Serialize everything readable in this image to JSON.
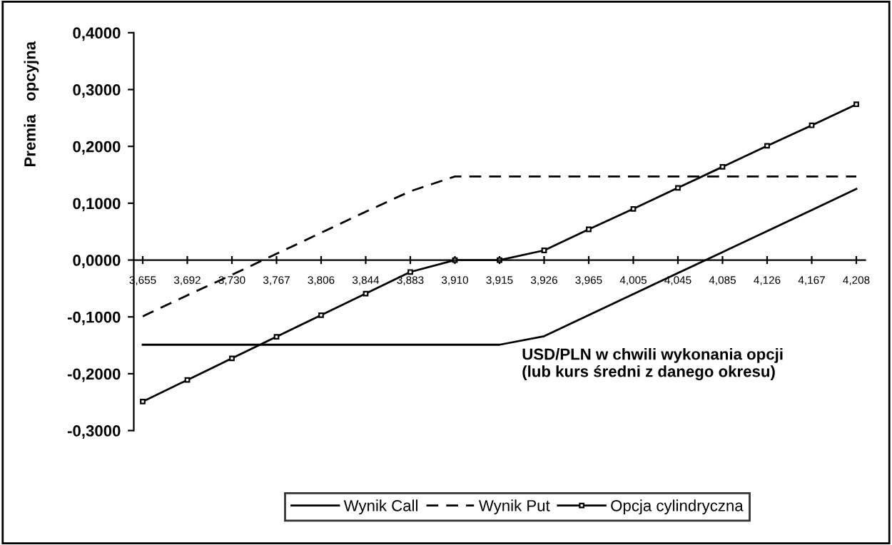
{
  "chart_data": {
    "type": "line",
    "ylabel": "Premia   opcyjna",
    "categories": [
      "3,655",
      "3,692",
      "3,730",
      "3,767",
      "3,806",
      "3,844",
      "3,883",
      "3,910",
      "3,915",
      "3,926",
      "3,965",
      "4,005",
      "4,045",
      "4,085",
      "4,126",
      "4,167",
      "4,208"
    ],
    "series": [
      {
        "name": "Wynik Call",
        "color": "#000000",
        "line_style": "solid",
        "marker": "none",
        "values": [
          -0.149,
          -0.149,
          -0.149,
          -0.149,
          -0.149,
          -0.149,
          -0.149,
          -0.149,
          -0.149,
          -0.134,
          -0.097,
          -0.06,
          -0.023,
          0.014,
          0.051,
          0.088,
          0.125
        ]
      },
      {
        "name": "Wynik Put",
        "color": "#000000",
        "line_style": "dashed",
        "marker": "none",
        "values": [
          -0.099,
          -0.062,
          -0.026,
          0.011,
          0.048,
          0.085,
          0.121,
          0.147,
          0.147,
          0.147,
          0.147,
          0.147,
          0.147,
          0.147,
          0.147,
          0.147,
          0.147
        ]
      },
      {
        "name": "Opcja cylindryczna",
        "color": "#000000",
        "line_style": "solid",
        "marker": "square",
        "values": [
          -0.249,
          -0.211,
          -0.173,
          -0.135,
          -0.097,
          -0.059,
          -0.021,
          0,
          0,
          0.017,
          0.054,
          0.09,
          0.127,
          0.164,
          0.201,
          0.237,
          0.274
        ]
      }
    ],
    "ylim": [
      -0.3,
      0.4
    ],
    "yticks": [
      {
        "value": -0.3,
        "label": "-0,3000"
      },
      {
        "value": -0.2,
        "label": "-0,2000"
      },
      {
        "value": -0.1,
        "label": "-0,1000"
      },
      {
        "value": 0,
        "label": "0,0000"
      },
      {
        "value": 0.1,
        "label": "0,1000"
      },
      {
        "value": 0.2,
        "label": "0,2000"
      },
      {
        "value": 0.3,
        "label": "0,3000"
      },
      {
        "value": 0.4,
        "label": "0,4000"
      }
    ],
    "annotations": [
      "USD/PLN w chwili wykonania opcji\n(lub kurs średni z danego okresu)"
    ],
    "grid": false,
    "legend": "bottom"
  }
}
